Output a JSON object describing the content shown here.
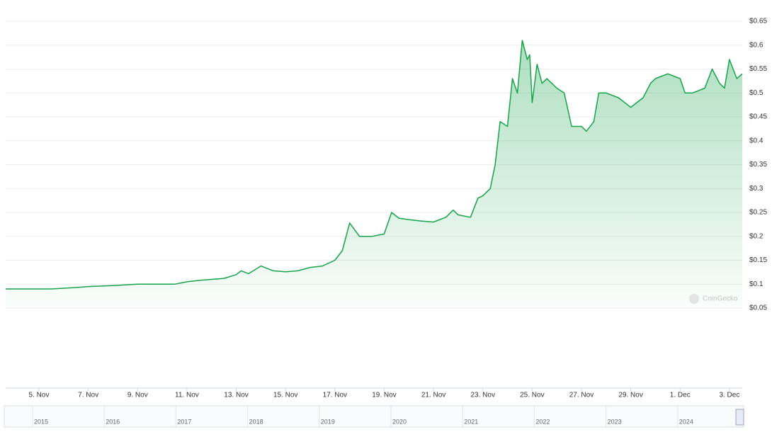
{
  "chart_data": {
    "type": "area",
    "watermark": "CoinGecko",
    "color": "#16a34a",
    "x": [
      3.65,
      4.5,
      5.5,
      6.5,
      7,
      8,
      9,
      10,
      10.5,
      11,
      11.5,
      12,
      12.5,
      13,
      13.2,
      13.5,
      14,
      14.5,
      15,
      15.5,
      16,
      16.5,
      17,
      17.3,
      17.6,
      18,
      18.5,
      19,
      19.3,
      19.6,
      20,
      20.5,
      21,
      21.5,
      21.8,
      22,
      22.5,
      22.8,
      23,
      23.3,
      23.5,
      23.7,
      24,
      24.2,
      24.4,
      24.6,
      24.8,
      24.9,
      25,
      25.2,
      25.4,
      25.6,
      26,
      26.3,
      26.6,
      27,
      27.2,
      27.5,
      27.7,
      28,
      28.5,
      29,
      29.5,
      29.8,
      30,
      30.5,
      31,
      31.2,
      31.5,
      32,
      32.3,
      32.6,
      32.8,
      33,
      33.3,
      33.52
    ],
    "values": [
      0.09,
      0.09,
      0.09,
      0.093,
      0.095,
      0.097,
      0.1,
      0.1,
      0.1,
      0.105,
      0.108,
      0.11,
      0.112,
      0.12,
      0.128,
      0.122,
      0.138,
      0.128,
      0.126,
      0.128,
      0.135,
      0.138,
      0.15,
      0.17,
      0.228,
      0.2,
      0.2,
      0.205,
      0.25,
      0.238,
      0.235,
      0.232,
      0.23,
      0.24,
      0.255,
      0.245,
      0.24,
      0.28,
      0.285,
      0.3,
      0.35,
      0.44,
      0.43,
      0.53,
      0.5,
      0.61,
      0.57,
      0.58,
      0.48,
      0.56,
      0.52,
      0.53,
      0.51,
      0.5,
      0.43,
      0.43,
      0.42,
      0.44,
      0.5,
      0.5,
      0.49,
      0.47,
      0.49,
      0.52,
      0.53,
      0.54,
      0.53,
      0.5,
      0.5,
      0.51,
      0.55,
      0.52,
      0.51,
      0.57,
      0.53,
      0.54
    ],
    "xlim": [
      3.65,
      33.52
    ],
    "xticks": [
      {
        "value": 5,
        "label": "5. Nov"
      },
      {
        "value": 7,
        "label": "7. Nov"
      },
      {
        "value": 9,
        "label": "9. Nov"
      },
      {
        "value": 11,
        "label": "11. Nov"
      },
      {
        "value": 13,
        "label": "13. Nov"
      },
      {
        "value": 15,
        "label": "15. Nov"
      },
      {
        "value": 17,
        "label": "17. Nov"
      },
      {
        "value": 19,
        "label": "19. Nov"
      },
      {
        "value": 21,
        "label": "21. Nov"
      },
      {
        "value": 23,
        "label": "23. Nov"
      },
      {
        "value": 25,
        "label": "25. Nov"
      },
      {
        "value": 27,
        "label": "27. Nov"
      },
      {
        "value": 29,
        "label": "29. Nov"
      },
      {
        "value": 31,
        "label": "1. Dec"
      },
      {
        "value": 33,
        "label": "3. Dec"
      }
    ],
    "ylim": [
      0.05,
      0.65
    ],
    "yticks": [
      {
        "value": 0.05,
        "label": "$0.05"
      },
      {
        "value": 0.1,
        "label": "$0.1"
      },
      {
        "value": 0.15,
        "label": "$0.15"
      },
      {
        "value": 0.2,
        "label": "$0.2"
      },
      {
        "value": 0.25,
        "label": "$0.25"
      },
      {
        "value": 0.3,
        "label": "$0.3"
      },
      {
        "value": 0.35,
        "label": "$0.35"
      },
      {
        "value": 0.4,
        "label": "$0.4"
      },
      {
        "value": 0.45,
        "label": "$0.45"
      },
      {
        "value": 0.5,
        "label": "$0.5"
      },
      {
        "value": 0.55,
        "label": "$0.55"
      },
      {
        "value": 0.6,
        "label": "$0.6"
      },
      {
        "value": 0.65,
        "label": "$0.65"
      }
    ],
    "grid": true,
    "navigator_labels": [
      "2015",
      "2016",
      "2017",
      "2018",
      "2019",
      "2020",
      "2021",
      "2022",
      "2023",
      "2024"
    ]
  }
}
